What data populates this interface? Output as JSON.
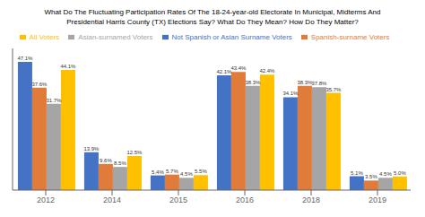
{
  "chart_data": {
    "type": "bar",
    "title": "What Do The Fluctuating Participation Rates Of The 18-24-year-old Electorate In Municipal, Midterms And",
    "subtitle": "Presidential Harris County (TX) Elections Say? What Do They Mean? How Do They Matter?",
    "categories": [
      "2012",
      "2014",
      "2015",
      "2016",
      "2018",
      "2019"
    ],
    "series": [
      {
        "name": "Not Spanish or Asian Surname Voters",
        "color": "#4472C4",
        "values": [
          47.1,
          13.9,
          5.4,
          42.1,
          34.1,
          5.1
        ],
        "value_labels": [
          "47.1%",
          "13.9%",
          "5.4%",
          "42.1%",
          "34.1%",
          "5.1%"
        ]
      },
      {
        "name": "Spanish-surname Voters",
        "color": "#E07B39",
        "values": [
          37.6,
          9.6,
          5.7,
          43.4,
          38.3,
          3.5
        ],
        "value_labels": [
          "37.6%",
          "9.6%",
          "5.7%",
          "43.4%",
          "38.3%",
          "3.5%"
        ]
      },
      {
        "name": "Asian-surnamed Voters",
        "color": "#A5A5A5",
        "values": [
          31.7,
          8.5,
          4.5,
          38.3,
          37.8,
          4.5
        ],
        "value_labels": [
          "31.7%",
          "8.5%",
          "4.5%",
          "38.3%",
          "37.8%",
          "4.5%"
        ]
      },
      {
        "name": "All Voters",
        "color": "#FFC000",
        "values": [
          44.1,
          12.5,
          5.5,
          42.4,
          35.7,
          5.0
        ],
        "value_labels": [
          "44.1%",
          "12.5%",
          "5.5%",
          "42.4%",
          "35.7%",
          "5.0%"
        ]
      }
    ],
    "ylim": [
      0,
      52
    ],
    "grid": false,
    "legend": "top",
    "data_labels": true,
    "tick_labels": "x"
  }
}
